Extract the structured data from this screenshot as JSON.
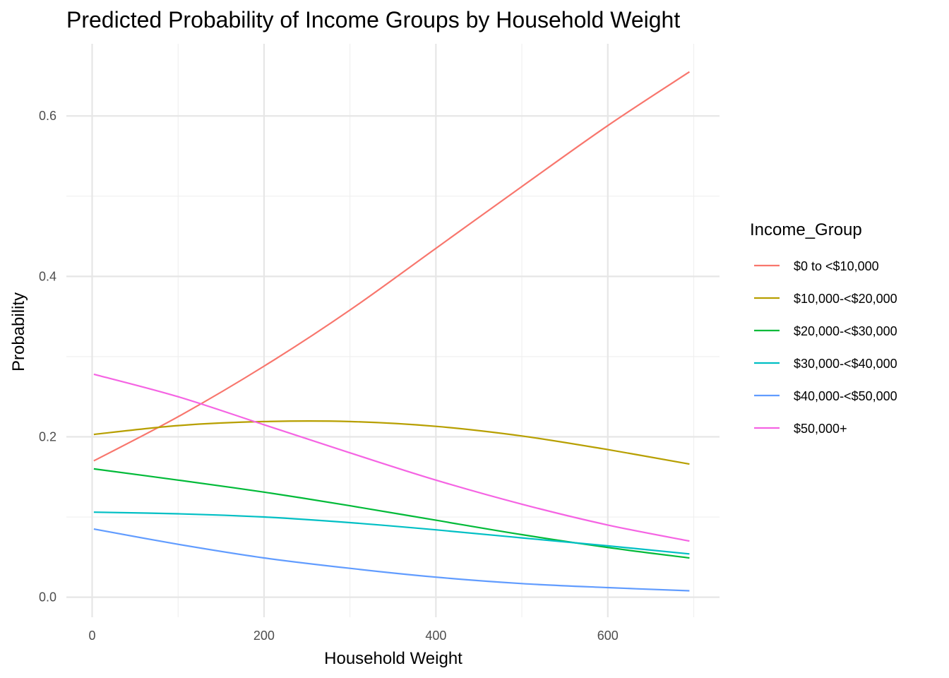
{
  "chart_data": {
    "type": "line",
    "title": "Predicted Probability of Income Groups by Household Weight",
    "xlabel": "Household Weight",
    "ylabel": "Probability",
    "xlim": [
      -30,
      730
    ],
    "ylim": [
      -0.025,
      0.69
    ],
    "x_ticks": [
      {
        "value": 0,
        "label": "0"
      },
      {
        "value": 200,
        "label": "200"
      },
      {
        "value": 400,
        "label": "400"
      },
      {
        "value": 600,
        "label": "600"
      }
    ],
    "x_minor_ticks": [
      100,
      300,
      500,
      700
    ],
    "y_ticks": [
      {
        "value": 0.0,
        "label": "0.0"
      },
      {
        "value": 0.2,
        "label": "0.2"
      },
      {
        "value": 0.4,
        "label": "0.4"
      },
      {
        "value": 0.6,
        "label": "0.6"
      }
    ],
    "y_minor_ticks": [
      0.1,
      0.3,
      0.5
    ],
    "grid": true,
    "legend": {
      "title": "Income_Group",
      "position": "right"
    },
    "x": [
      2,
      100,
      200,
      300,
      400,
      500,
      600,
      695
    ],
    "series": [
      {
        "name": "$0 to <$10,000",
        "color": "#F8766D",
        "values": [
          0.17,
          0.225,
          0.288,
          0.358,
          0.435,
          0.512,
          0.588,
          0.655
        ]
      },
      {
        "name": "$10,000-<$20,000",
        "color": "#B79F00",
        "values": [
          0.203,
          0.214,
          0.219,
          0.219,
          0.213,
          0.201,
          0.184,
          0.166
        ]
      },
      {
        "name": "$20,000-<$30,000",
        "color": "#00BA38",
        "values": [
          0.16,
          0.146,
          0.131,
          0.114,
          0.096,
          0.078,
          0.062,
          0.049
        ]
      },
      {
        "name": "$30,000-<$40,000",
        "color": "#00BFC4",
        "values": [
          0.106,
          0.104,
          0.1,
          0.093,
          0.084,
          0.074,
          0.064,
          0.054
        ]
      },
      {
        "name": "$40,000-<$50,000",
        "color": "#619CFF",
        "values": [
          0.085,
          0.066,
          0.049,
          0.036,
          0.025,
          0.017,
          0.012,
          0.008
        ]
      },
      {
        "name": "$50,000+",
        "color": "#F564E3",
        "values": [
          0.278,
          0.25,
          0.215,
          0.18,
          0.146,
          0.116,
          0.09,
          0.07
        ]
      }
    ]
  }
}
